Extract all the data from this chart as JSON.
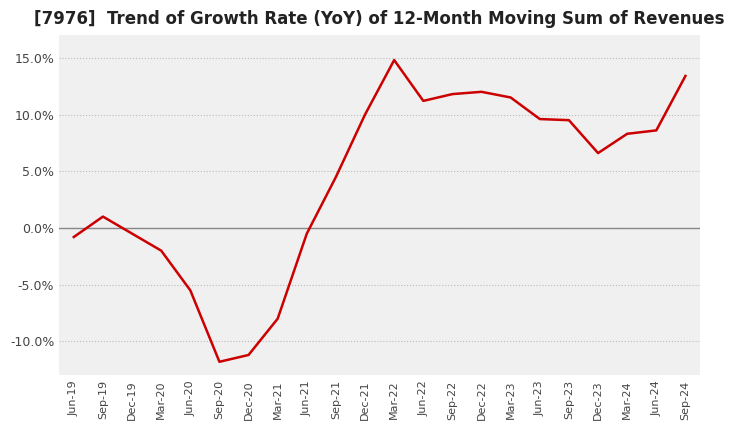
{
  "title": "[7976]  Trend of Growth Rate (YoY) of 12-Month Moving Sum of Revenues",
  "title_fontsize": 12,
  "ylim": [
    -0.13,
    0.17
  ],
  "yticks": [
    -0.1,
    -0.05,
    0.0,
    0.05,
    0.1,
    0.15
  ],
  "ytick_labels": [
    "-10.0%",
    "-5.0%",
    "0.0%",
    "5.0%",
    "10.0%",
    "15.0%"
  ],
  "line_color": "#cc0000",
  "background_color": "#ffffff",
  "plot_bg_color": "#f0f0f0",
  "grid_color": "#bbbbbb",
  "zero_line_color": "#888888",
  "dates": [
    "Jun-19",
    "Sep-19",
    "Dec-19",
    "Mar-20",
    "Jun-20",
    "Sep-20",
    "Dec-20",
    "Mar-21",
    "Jun-21",
    "Sep-21",
    "Dec-21",
    "Mar-22",
    "Jun-22",
    "Sep-22",
    "Dec-22",
    "Mar-23",
    "Jun-23",
    "Sep-23",
    "Dec-23",
    "Mar-24",
    "Jun-24",
    "Sep-24"
  ],
  "values": [
    -0.008,
    0.01,
    -0.005,
    -0.02,
    -0.055,
    -0.118,
    -0.112,
    -0.08,
    -0.005,
    0.045,
    0.1,
    0.148,
    0.112,
    0.118,
    0.12,
    0.115,
    0.096,
    0.095,
    0.066,
    0.083,
    0.086,
    0.134
  ]
}
